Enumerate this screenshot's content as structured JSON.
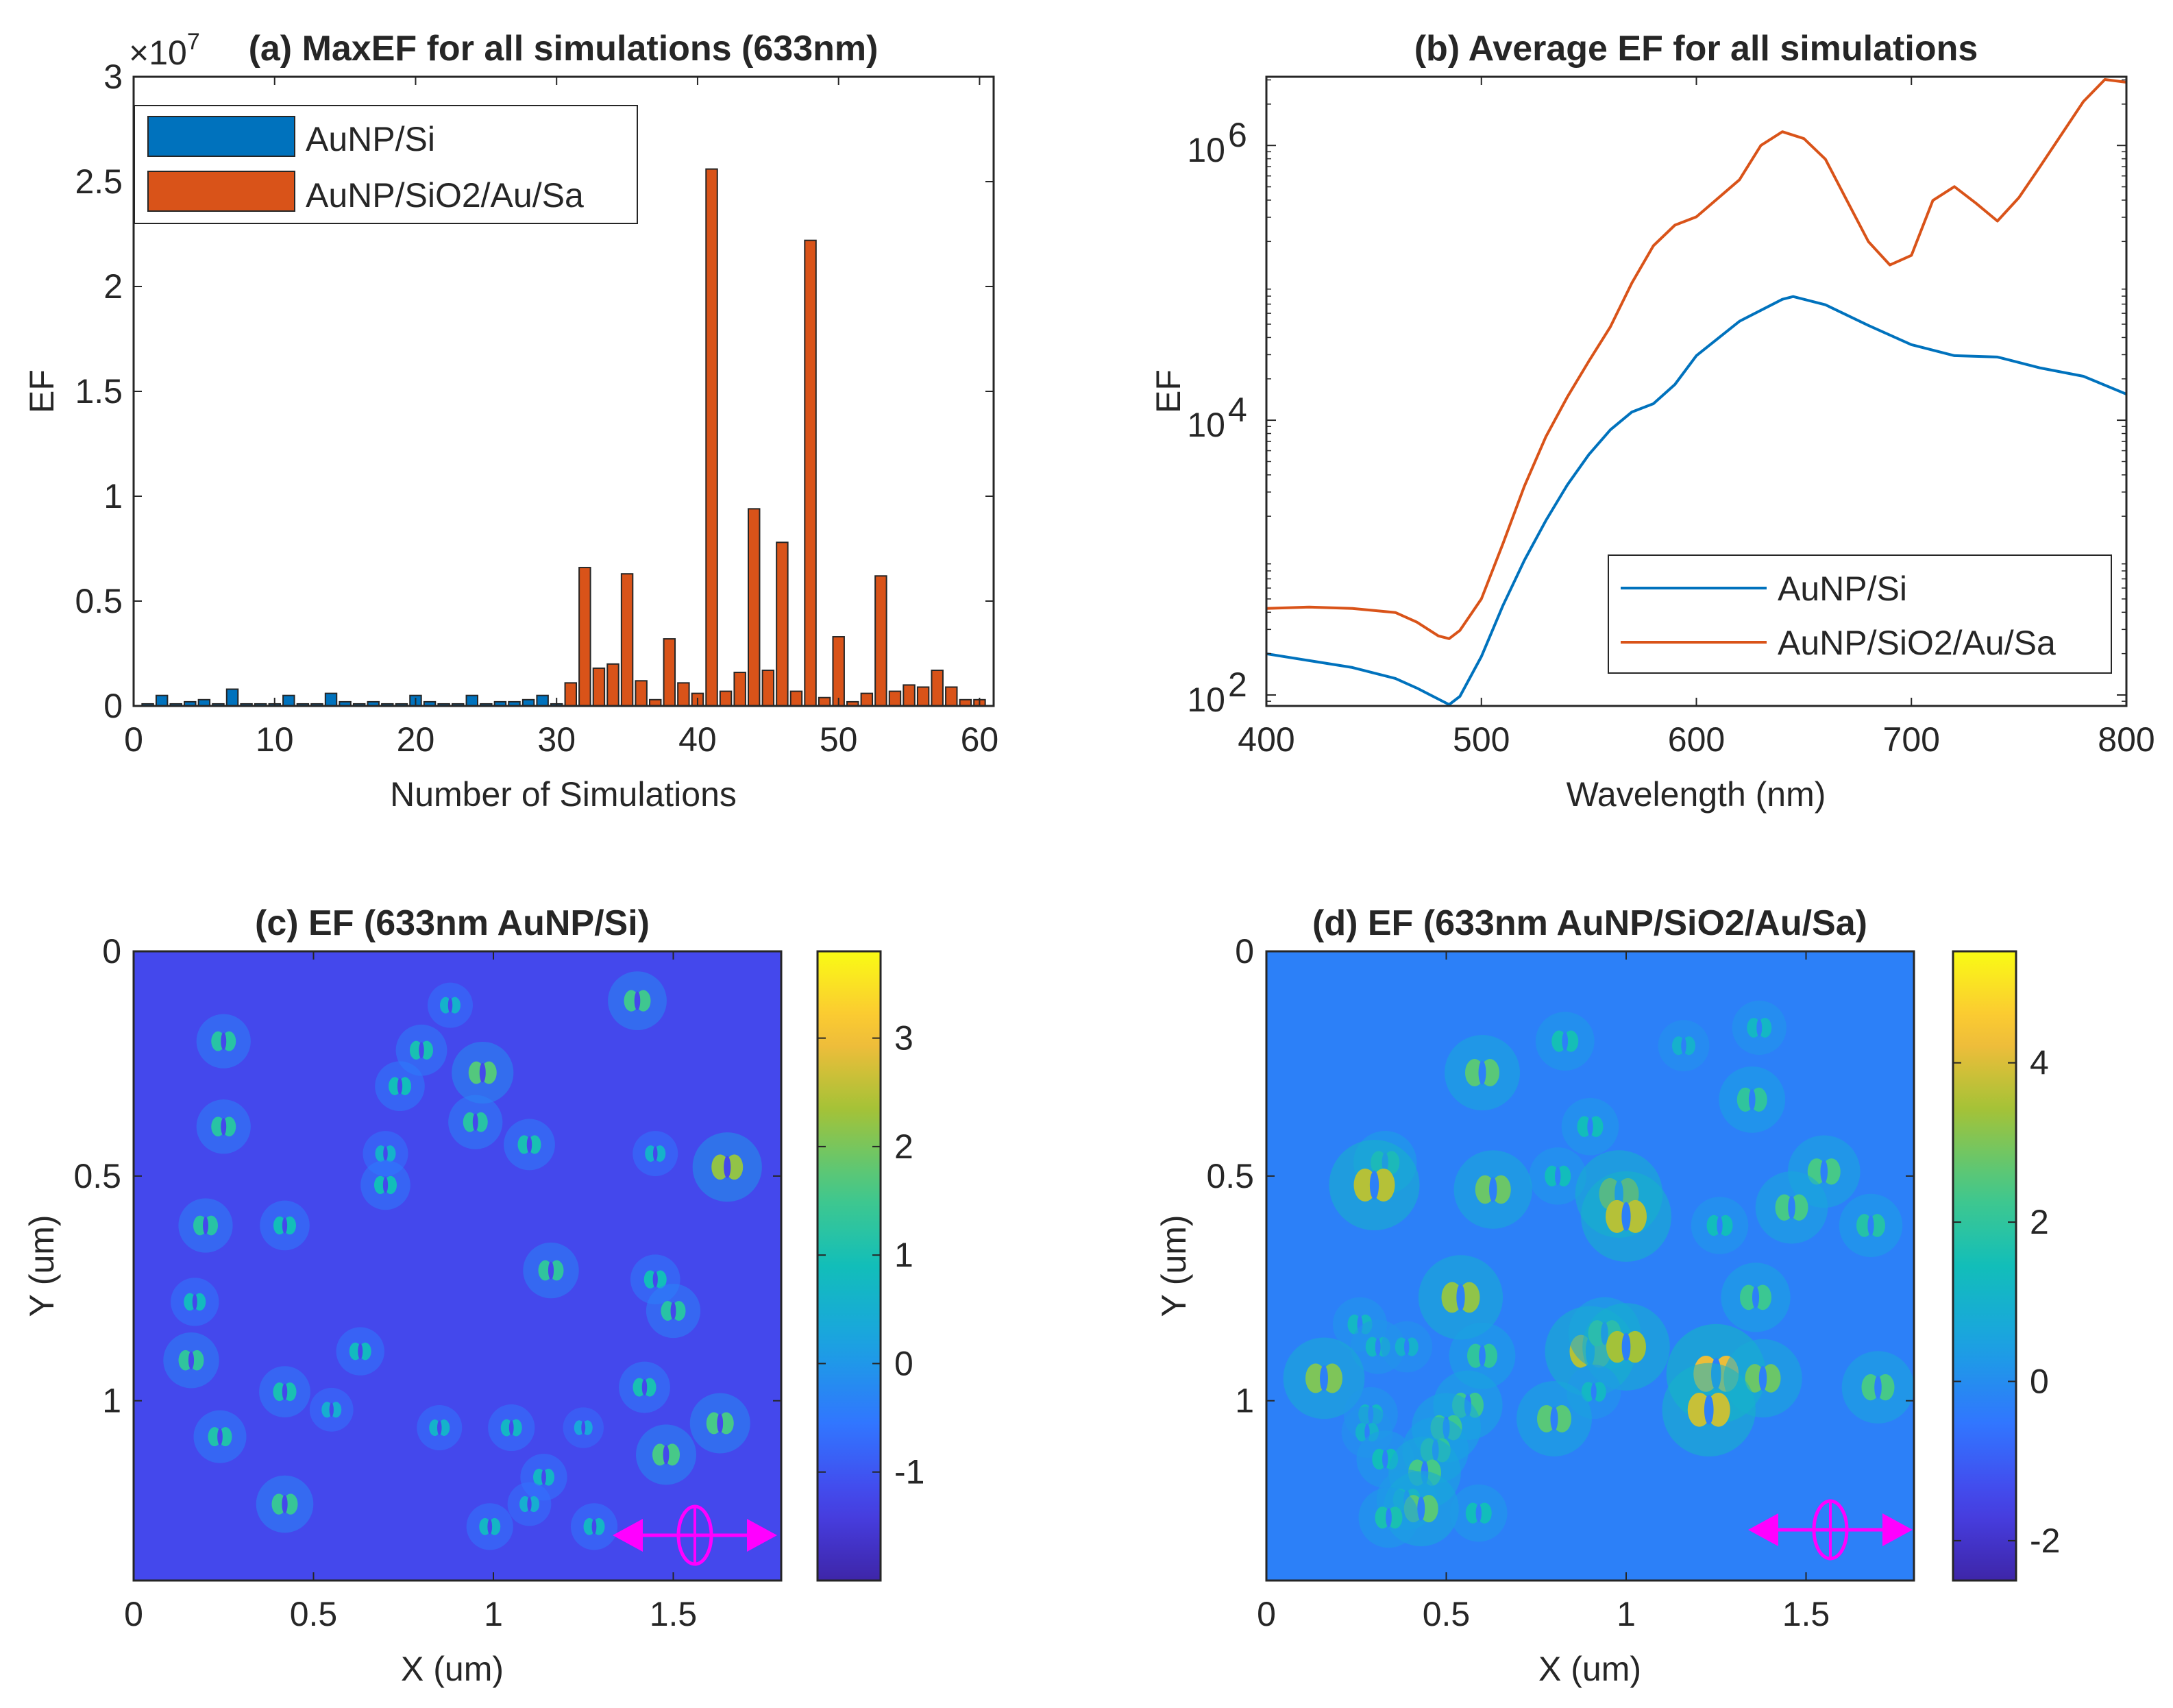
{
  "colors": {
    "blue": "#0072BD",
    "orange": "#D95319",
    "magenta": "#FF00FF",
    "axis": "#262626"
  },
  "chart_data": [
    {
      "id": "a",
      "type": "bar",
      "title": "(a) MaxEF for all simulations (633nm)",
      "xlabel": "Number of Simulations",
      "ylabel": "EF",
      "exponent_label": "×10",
      "exponent_power": "7",
      "xlim": [
        0,
        61
      ],
      "ylim": [
        0,
        3
      ],
      "xticks": [
        0,
        10,
        20,
        30,
        40,
        50,
        60
      ],
      "yticks": [
        0,
        0.5,
        1,
        1.5,
        2,
        2.5,
        3
      ],
      "xtick_labels": [
        "0",
        "10",
        "20",
        "30",
        "40",
        "50",
        "60"
      ],
      "ytick_labels": [
        "0",
        "0.5",
        "1",
        "1.5",
        "2",
        "2.5",
        "3"
      ],
      "legend": [
        "AuNP/Si",
        "AuNP/SiO2/Au/Sa"
      ],
      "series": [
        {
          "name": "AuNP/Si",
          "x": [
            1,
            2,
            3,
            4,
            5,
            6,
            7,
            8,
            9,
            10,
            11,
            12,
            13,
            14,
            15,
            16,
            17,
            18,
            19,
            20,
            21,
            22,
            23,
            24,
            25,
            26,
            27,
            28,
            29,
            30
          ],
          "values": [
            0.01,
            0.05,
            0.01,
            0.02,
            0.03,
            0.01,
            0.08,
            0.01,
            0.01,
            0.01,
            0.05,
            0.01,
            0.01,
            0.06,
            0.02,
            0.01,
            0.02,
            0.01,
            0.01,
            0.05,
            0.02,
            0.01,
            0.01,
            0.05,
            0.01,
            0.02,
            0.02,
            0.03,
            0.05,
            0.01
          ]
        },
        {
          "name": "AuNP/SiO2/Au/Sa",
          "x": [
            31,
            32,
            33,
            34,
            35,
            36,
            37,
            38,
            39,
            40,
            41,
            42,
            43,
            44,
            45,
            46,
            47,
            48,
            49,
            50,
            51,
            52,
            53,
            54,
            55,
            56,
            57,
            58,
            59,
            60
          ],
          "values": [
            0.11,
            0.66,
            0.18,
            0.2,
            0.63,
            0.12,
            0.03,
            0.32,
            0.11,
            0.06,
            2.56,
            0.07,
            0.16,
            0.94,
            0.17,
            0.78,
            0.07,
            2.22,
            0.04,
            0.33,
            0.02,
            0.06,
            0.62,
            0.07,
            0.1,
            0.09,
            0.17,
            0.09,
            0.03,
            0.03
          ]
        }
      ]
    },
    {
      "id": "b",
      "type": "line",
      "title": "(b) Average EF for all simulations",
      "xlabel": "Wavelength (nm)",
      "ylabel": "EF",
      "xlim": [
        400,
        800
      ],
      "ylim_log10": [
        1.92,
        6.5
      ],
      "xticks": [
        400,
        500,
        600,
        700,
        800
      ],
      "xtick_labels": [
        "400",
        "500",
        "600",
        "700",
        "800"
      ],
      "yticks_log10": [
        2,
        4,
        6
      ],
      "ytick_base": "10",
      "ytick_powers": [
        "2",
        "4",
        "6"
      ],
      "legend": [
        "AuNP/Si",
        "AuNP/SiO2/Au/Sa"
      ],
      "series": [
        {
          "name": "AuNP/Si",
          "x": [
            400,
            420,
            440,
            460,
            470,
            480,
            485,
            490,
            500,
            510,
            520,
            530,
            540,
            550,
            560,
            570,
            580,
            590,
            600,
            620,
            640,
            645,
            660,
            680,
            700,
            720,
            740,
            760,
            780,
            800
          ],
          "log10": [
            2.3,
            2.25,
            2.2,
            2.12,
            2.05,
            1.97,
            1.93,
            1.99,
            2.28,
            2.65,
            2.98,
            3.27,
            3.53,
            3.75,
            3.93,
            4.06,
            4.12,
            4.26,
            4.47,
            4.72,
            4.88,
            4.9,
            4.84,
            4.69,
            4.55,
            4.47,
            4.46,
            4.38,
            4.32,
            4.19
          ]
        },
        {
          "name": "AuNP/SiO2/Au/Sa",
          "x": [
            400,
            420,
            440,
            460,
            470,
            480,
            485,
            490,
            500,
            510,
            520,
            530,
            540,
            550,
            560,
            570,
            580,
            590,
            600,
            620,
            630,
            640,
            650,
            660,
            670,
            680,
            690,
            700,
            710,
            720,
            730,
            740,
            750,
            760,
            780,
            790,
            800
          ],
          "log10": [
            2.63,
            2.64,
            2.63,
            2.6,
            2.53,
            2.43,
            2.41,
            2.47,
            2.7,
            3.1,
            3.52,
            3.88,
            4.17,
            4.43,
            4.68,
            5.0,
            5.27,
            5.42,
            5.48,
            5.75,
            6.0,
            6.1,
            6.05,
            5.9,
            5.6,
            5.3,
            5.13,
            5.2,
            5.6,
            5.7,
            5.58,
            5.45,
            5.62,
            5.85,
            6.32,
            6.48,
            6.46
          ]
        }
      ]
    },
    {
      "id": "c",
      "type": "heatmap",
      "title": "(c) EF (633nm AuNP/Si)",
      "xlabel": "X (um)",
      "ylabel": "Y (um)",
      "xlim": [
        0,
        1.8
      ],
      "ylim": [
        0,
        1.4
      ],
      "xticks": [
        0,
        0.5,
        1,
        1.5
      ],
      "yticks": [
        0,
        0.5,
        1
      ],
      "xtick_labels": [
        "0",
        "0.5",
        "1",
        "1.5"
      ],
      "ytick_labels": [
        "0",
        "0.5",
        "1"
      ],
      "colorbar_range": [
        -2,
        3.8
      ],
      "colorbar_ticks": [
        -1,
        0,
        1,
        2,
        3
      ],
      "colorbar_tick_labels": [
        "-1",
        "0",
        "1",
        "2",
        "3"
      ],
      "background_value": -1.2,
      "hotspots": [
        [
          0.88,
          0.12,
          0.6
        ],
        [
          1.4,
          0.11,
          1.5
        ],
        [
          0.25,
          0.2,
          1.2
        ],
        [
          0.8,
          0.22,
          1.0
        ],
        [
          0.74,
          0.3,
          0.9
        ],
        [
          0.97,
          0.27,
          1.7
        ],
        [
          0.25,
          0.39,
          1.2
        ],
        [
          0.95,
          0.38,
          1.2
        ],
        [
          1.1,
          0.43,
          1.0
        ],
        [
          1.45,
          0.45,
          0.6
        ],
        [
          1.65,
          0.48,
          2.2
        ],
        [
          0.7,
          0.45,
          0.6
        ],
        [
          0.7,
          0.52,
          0.9
        ],
        [
          0.2,
          0.61,
          1.2
        ],
        [
          0.42,
          0.61,
          0.9
        ],
        [
          1.16,
          0.71,
          1.3
        ],
        [
          1.45,
          0.73,
          0.9
        ],
        [
          0.17,
          0.78,
          0.8
        ],
        [
          1.5,
          0.8,
          1.2
        ],
        [
          0.63,
          0.89,
          0.8
        ],
        [
          0.16,
          0.91,
          1.3
        ],
        [
          0.42,
          0.98,
          1.0
        ],
        [
          1.42,
          0.97,
          1.0
        ],
        [
          0.55,
          1.02,
          0.5
        ],
        [
          0.85,
          1.06,
          0.6
        ],
        [
          1.05,
          1.06,
          0.7
        ],
        [
          1.25,
          1.06,
          0.3
        ],
        [
          1.63,
          1.05,
          1.6
        ],
        [
          0.24,
          1.08,
          1.1
        ],
        [
          1.48,
          1.12,
          1.6
        ],
        [
          1.14,
          1.17,
          0.7
        ],
        [
          0.42,
          1.23,
          1.4
        ],
        [
          1.1,
          1.23,
          0.5
        ],
        [
          0.99,
          1.28,
          0.7
        ],
        [
          1.28,
          1.28,
          0.7
        ]
      ]
    },
    {
      "id": "d",
      "type": "heatmap",
      "title": "(d) EF (633nm AuNP/SiO2/Au/Sa)",
      "xlabel": "X (um)",
      "ylabel": "Y (um)",
      "xlim": [
        0,
        1.8
      ],
      "ylim": [
        0,
        1.4
      ],
      "xticks": [
        0,
        0.5,
        1,
        1.5
      ],
      "yticks": [
        0,
        0.5,
        1
      ],
      "xtick_labels": [
        "0",
        "0.5",
        "1",
        "1.5"
      ],
      "ytick_labels": [
        "0",
        "0.5",
        "1"
      ],
      "colorbar_range": [
        -2.5,
        5.4
      ],
      "colorbar_ticks": [
        -2,
        0,
        2,
        4
      ],
      "colorbar_tick_labels": [
        "-2",
        "0",
        "2",
        "4"
      ],
      "background_value": -0.3,
      "hotspots": [
        [
          0.83,
          0.2,
          1.5
        ],
        [
          1.16,
          0.21,
          1.0
        ],
        [
          1.37,
          0.17,
          1.2
        ],
        [
          0.6,
          0.27,
          2.6
        ],
        [
          1.35,
          0.33,
          2.0
        ],
        [
          0.9,
          0.39,
          1.4
        ],
        [
          0.33,
          0.47,
          1.8
        ],
        [
          0.3,
          0.52,
          3.6
        ],
        [
          0.81,
          0.5,
          1.4
        ],
        [
          0.63,
          0.53,
          2.8
        ],
        [
          0.98,
          0.54,
          3.4
        ],
        [
          1.0,
          0.59,
          3.6
        ],
        [
          1.55,
          0.49,
          2.4
        ],
        [
          1.46,
          0.57,
          2.4
        ],
        [
          1.68,
          0.61,
          1.8
        ],
        [
          1.26,
          0.61,
          1.4
        ],
        [
          0.54,
          0.77,
          3.2
        ],
        [
          1.36,
          0.77,
          2.2
        ],
        [
          0.26,
          0.83,
          1.2
        ],
        [
          0.31,
          0.88,
          1.2
        ],
        [
          0.39,
          0.88,
          1.0
        ],
        [
          0.6,
          0.9,
          2.0
        ],
        [
          0.9,
          0.89,
          3.6
        ],
        [
          0.94,
          0.85,
          2.4
        ],
        [
          1.0,
          0.88,
          3.4
        ],
        [
          1.25,
          0.94,
          4.2
        ],
        [
          1.38,
          0.95,
          2.8
        ],
        [
          0.16,
          0.95,
          3.0
        ],
        [
          1.7,
          0.97,
          2.4
        ],
        [
          0.91,
          0.98,
          1.2
        ],
        [
          0.56,
          1.01,
          2.2
        ],
        [
          0.8,
          1.04,
          2.6
        ],
        [
          1.23,
          1.02,
          3.8
        ],
        [
          0.29,
          1.03,
          1.2
        ],
        [
          0.5,
          1.06,
          2.2
        ],
        [
          0.28,
          1.07,
          1.0
        ],
        [
          0.47,
          1.11,
          2.0
        ],
        [
          0.33,
          1.13,
          1.4
        ],
        [
          0.44,
          1.16,
          2.4
        ],
        [
          0.39,
          1.22,
          1.6
        ],
        [
          0.43,
          1.24,
          2.6
        ],
        [
          0.59,
          1.25,
          1.4
        ],
        [
          0.34,
          1.26,
          1.6
        ]
      ]
    }
  ]
}
